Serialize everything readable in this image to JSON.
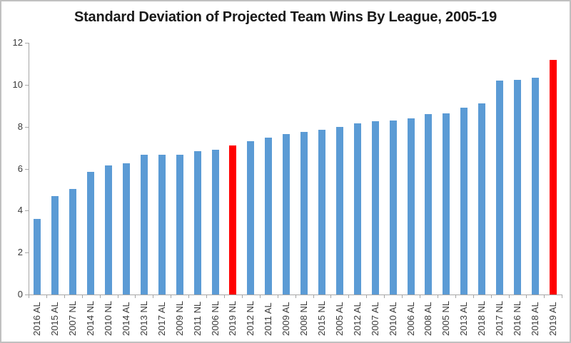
{
  "chart": {
    "title": "Standard Deviation of Projected Team Wins By League, 2005-19"
  },
  "chart_data": {
    "type": "bar",
    "title": "Standard Deviation of Projected Team Wins By League, 2005-19",
    "categories": [
      "2016 AL",
      "2015 AL",
      "2007 NL",
      "2014 NL",
      "2010 NL",
      "2014 AL",
      "2013 NL",
      "2017 AL",
      "2009 NL",
      "2011 NL",
      "2006 NL",
      "2019 NL",
      "2012 NL",
      "2011 AL",
      "2009 AL",
      "2008 NL",
      "2015 NL",
      "2005 AL",
      "2012 AL",
      "2007 AL",
      "2010 AL",
      "2006 AL",
      "2008 AL",
      "2005 NL",
      "2013 AL",
      "2018 NL",
      "2017 NL",
      "2016 NL",
      "2018 AL",
      "2019 AL"
    ],
    "values": [
      3.6,
      4.7,
      5.05,
      5.85,
      6.15,
      6.25,
      6.65,
      6.65,
      6.65,
      6.85,
      6.9,
      7.1,
      7.3,
      7.5,
      7.65,
      7.75,
      7.85,
      8.0,
      8.15,
      8.25,
      8.3,
      8.4,
      8.6,
      8.65,
      8.9,
      9.1,
      10.2,
      10.25,
      10.35,
      11.2
    ],
    "highlighted_categories": [
      "2019 NL",
      "2019 AL"
    ],
    "xlabel": "",
    "ylabel": "",
    "ylim": [
      0,
      12
    ],
    "yticks": [
      0,
      2,
      4,
      6,
      8,
      10,
      12
    ],
    "grid": false,
    "legend_position": "none",
    "colors": {
      "bar": "#5B9BD5",
      "highlight": "#FF0000",
      "axis_line": "#A6A6A6",
      "label_text": "#3A3A3A",
      "title_text": "#1A1A1A",
      "border": "#C0C0C0",
      "background": "#FFFFFF"
    }
  }
}
